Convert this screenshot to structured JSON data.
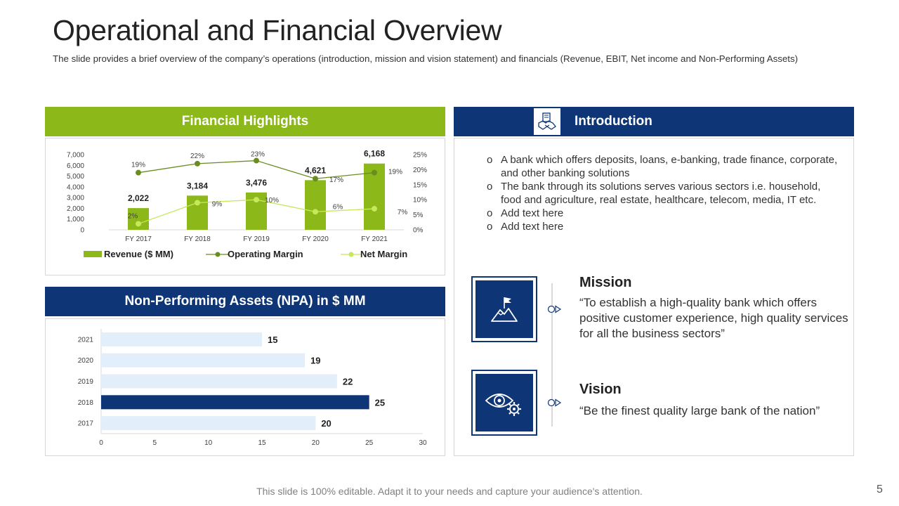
{
  "title": "Operational and Financial Overview",
  "subtitle": "The slide provides a brief overview of the company’s operations (introduction, mission and vision statement) and financials (Revenue, EBIT, Net income and Non-Performing Assets)",
  "financial": {
    "header": "Financial Highlights"
  },
  "npa": {
    "header": "Non-Performing Assets (NPA) in $ MM"
  },
  "intro": {
    "header": "Introduction",
    "bullet_marker": "o",
    "bullets": [
      "A bank which offers deposits, loans, e-banking, trade finance, corporate, and other banking solutions",
      "The bank through its solutions serves various sectors i.e. household, food and agriculture, real estate, healthcare, telecom, media, IT etc.",
      "Add text here",
      "Add text here"
    ]
  },
  "mission": {
    "title": "Mission",
    "text": "“To establish a high-quality bank which offers positive customer experience, high quality services for all the business sectors”"
  },
  "vision": {
    "title": "Vision",
    "text": "“Be the finest quality large bank of the nation”"
  },
  "footer": "This slide is 100% editable. Adapt it to your needs and capture your audience's attention.",
  "page_number": "5",
  "colors": {
    "green": "#8cb81a",
    "dark_green": "#6a8d1f",
    "light_green": "#c6e85a",
    "navy": "#0e3575",
    "light_blue": "#e3eefb"
  },
  "chart_data": [
    {
      "type": "bar",
      "title": "Financial Highlights",
      "categories": [
        "FY 2017",
        "FY 2018",
        "FY 2019",
        "FY 2020",
        "FY 2021"
      ],
      "series": [
        {
          "name": "Revenue ($ MM)",
          "kind": "bar",
          "axis": "left",
          "values": [
            2022,
            3184,
            3476,
            4621,
            6168
          ],
          "labels": [
            "2,022",
            "3,184",
            "3,476",
            "4,621",
            "6,168"
          ]
        },
        {
          "name": "Operating Margin",
          "kind": "line",
          "axis": "right",
          "values": [
            19,
            22,
            23,
            17,
            19
          ],
          "labels": [
            "19%",
            "22%",
            "23%",
            "17%",
            "19%"
          ]
        },
        {
          "name": "Net Margin",
          "kind": "line",
          "axis": "right",
          "values": [
            2,
            9,
            10,
            6,
            7
          ],
          "labels": [
            "2%",
            "9%",
            "10%",
            "6%",
            "7%"
          ]
        }
      ],
      "y_left": {
        "min": 0,
        "max": 7000,
        "ticks": [
          "0",
          "1,000",
          "2,000",
          "3,000",
          "4,000",
          "5,000",
          "6,000",
          "7,000"
        ]
      },
      "y_right": {
        "min": 0,
        "max": 25,
        "ticks": [
          "0%",
          "5%",
          "10%",
          "15%",
          "20%",
          "25%"
        ]
      },
      "legend": "bottom"
    },
    {
      "type": "bar",
      "orientation": "horizontal",
      "title": "Non-Performing Assets (NPA) in $ MM",
      "categories": [
        "2021",
        "2020",
        "2019",
        "2018",
        "2017"
      ],
      "values": [
        15,
        19,
        22,
        25,
        20
      ],
      "highlight": "2018",
      "xlim": [
        0,
        30
      ],
      "x_ticks": [
        "0",
        "5",
        "10",
        "15",
        "20",
        "25",
        "30"
      ]
    }
  ]
}
